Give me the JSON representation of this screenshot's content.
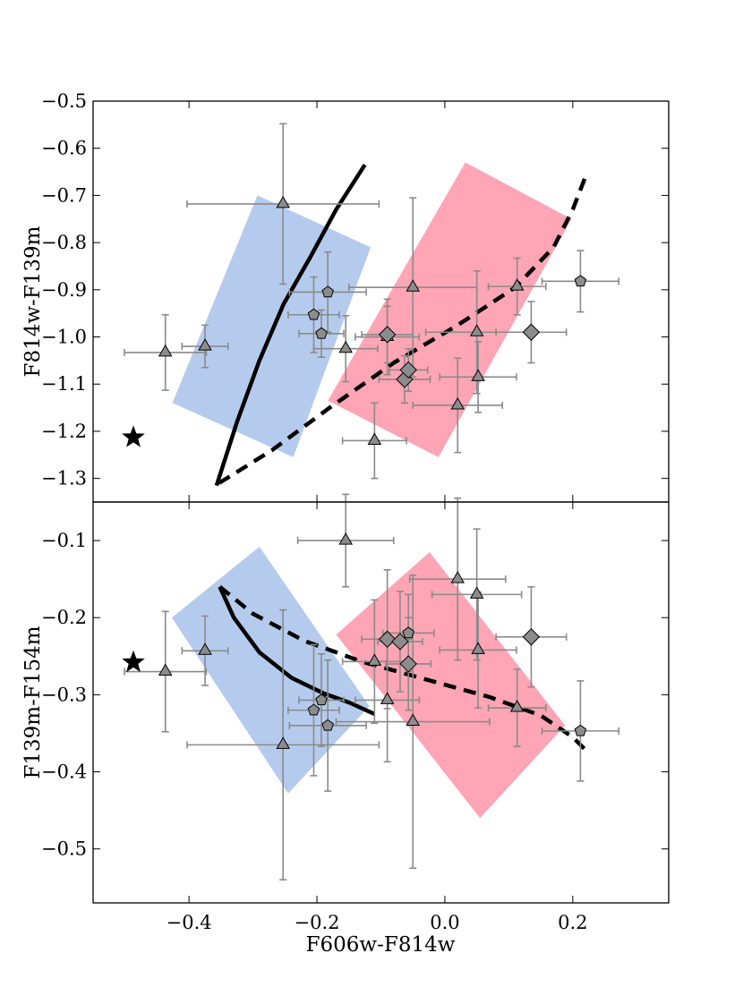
{
  "chart_data": [
    {
      "type": "scatter",
      "xlabel": "",
      "ylabel": "F814w-F139m",
      "xlim": [
        -0.55,
        0.35
      ],
      "ylim": [
        -1.35,
        -0.5
      ],
      "y_inverted": true,
      "xticks": [
        -0.4,
        -0.2,
        0.0,
        0.2
      ],
      "xtick_labels": [
        "",
        "",
        "",
        ""
      ],
      "yticks": [
        -0.5,
        -0.6,
        -0.7,
        -0.8,
        -0.9,
        -1.0,
        -1.1,
        -1.2,
        -1.3
      ],
      "ytick_labels": [
        "−0.5",
        "−0.6",
        "−0.7",
        "−0.8",
        "−0.9",
        "−1.0",
        "−1.1",
        "−1.2",
        "−1.3"
      ],
      "regions": [
        {
          "color": "#b5cbed",
          "polygon": [
            [
              -0.293,
              -0.7
            ],
            [
              -0.116,
              -0.81
            ],
            [
              -0.237,
              -1.255
            ],
            [
              -0.426,
              -1.14
            ]
          ]
        },
        {
          "color": "#ffa5b5",
          "polygon": [
            [
              0.032,
              -0.63
            ],
            [
              0.198,
              -0.75
            ],
            [
              -0.01,
              -1.255
            ],
            [
              -0.183,
              -1.135
            ]
          ]
        }
      ],
      "series": [
        {
          "marker": "triangle",
          "points": [
            {
              "x": -0.437,
              "y": -1.033,
              "xerr": 0.064,
              "yerr": 0.08
            },
            {
              "x": -0.375,
              "y": -1.02,
              "xerr": 0.036,
              "yerr": 0.045
            },
            {
              "x": -0.253,
              "y": -0.718,
              "xerr": 0.15,
              "yerr": 0.17
            },
            {
              "x": -0.155,
              "y": -1.025,
              "xerr": 0.05,
              "yerr": 0.07
            },
            {
              "x": -0.11,
              "y": -1.22,
              "xerr": 0.05,
              "yerr": 0.08
            },
            {
              "x": -0.09,
              "y": -1.0,
              "xerr": 0.05,
              "yerr": 0.08
            },
            {
              "x": -0.05,
              "y": -0.895,
              "xerr": 0.1,
              "yerr": 0.19
            },
            {
              "x": 0.02,
              "y": -1.145,
              "xerr": 0.07,
              "yerr": 0.1
            },
            {
              "x": 0.05,
              "y": -0.99,
              "xerr": 0.08,
              "yerr": 0.13
            },
            {
              "x": 0.052,
              "y": -1.085,
              "xerr": 0.06,
              "yerr": 0.075
            },
            {
              "x": 0.113,
              "y": -0.893,
              "xerr": 0.045,
              "yerr": 0.06
            }
          ]
        },
        {
          "marker": "pentagon",
          "points": [
            {
              "x": -0.205,
              "y": -0.953,
              "xerr": 0.04,
              "yerr": 0.08
            },
            {
              "x": -0.193,
              "y": -0.993,
              "xerr": 0.035,
              "yerr": 0.05
            },
            {
              "x": -0.183,
              "y": -0.905,
              "xerr": 0.06,
              "yerr": 0.085
            },
            {
              "x": 0.212,
              "y": -0.882,
              "xerr": 0.06,
              "yerr": 0.065
            }
          ]
        },
        {
          "marker": "diamond",
          "points": [
            {
              "x": -0.09,
              "y": -0.995,
              "xerr": 0.04,
              "yerr": 0.06
            },
            {
              "x": -0.063,
              "y": -1.09,
              "xerr": 0.04,
              "yerr": 0.05
            },
            {
              "x": -0.057,
              "y": -1.07,
              "xerr": 0.03,
              "yerr": 0.045
            },
            {
              "x": 0.135,
              "y": -0.99,
              "xerr": 0.055,
              "yerr": 0.065
            }
          ]
        },
        {
          "marker": "star",
          "points": [
            {
              "x": -0.487,
              "y": -1.213
            }
          ]
        }
      ],
      "curves": [
        {
          "style": "solid",
          "points": [
            [
              -0.357,
              -1.315
            ],
            [
              -0.325,
              -1.18
            ],
            [
              -0.29,
              -1.05
            ],
            [
              -0.252,
              -0.93
            ],
            [
              -0.21,
              -0.83
            ],
            [
              -0.17,
              -0.73
            ],
            [
              -0.125,
              -0.635
            ]
          ]
        },
        {
          "style": "dashed",
          "points": [
            [
              -0.353,
              -1.31
            ],
            [
              -0.27,
              -1.24
            ],
            [
              -0.18,
              -1.15
            ],
            [
              -0.08,
              -1.055
            ],
            [
              0.02,
              -0.975
            ],
            [
              0.11,
              -0.895
            ],
            [
              0.17,
              -0.81
            ],
            [
              0.2,
              -0.73
            ],
            [
              0.22,
              -0.66
            ]
          ]
        }
      ]
    },
    {
      "type": "scatter",
      "xlabel": "F606w-F814w",
      "ylabel": "F139m-F154m",
      "xlim": [
        -0.55,
        0.35
      ],
      "ylim": [
        -0.57,
        -0.05
      ],
      "y_inverted": true,
      "xticks": [
        -0.4,
        -0.2,
        0.0,
        0.2
      ],
      "xtick_labels": [
        "−0.4",
        "−0.2",
        "0.0",
        "0.2"
      ],
      "yticks": [
        -0.1,
        -0.2,
        -0.3,
        -0.4,
        -0.5
      ],
      "ytick_labels": [
        "−0.1",
        "−0.2",
        "−0.3",
        "−0.4",
        "−0.5"
      ],
      "regions": [
        {
          "color": "#b5cbed",
          "polygon": [
            [
              -0.29,
              -0.108
            ],
            [
              -0.118,
              -0.315
            ],
            [
              -0.245,
              -0.428
            ],
            [
              -0.427,
              -0.2
            ]
          ]
        },
        {
          "color": "#ffa5b5",
          "polygon": [
            [
              -0.024,
              -0.115
            ],
            [
              0.188,
              -0.34
            ],
            [
              0.055,
              -0.46
            ],
            [
              -0.17,
              -0.222
            ]
          ]
        }
      ],
      "series": [
        {
          "marker": "triangle",
          "points": [
            {
              "x": -0.437,
              "y": -0.27,
              "xerr": 0.064,
              "yerr": 0.078
            },
            {
              "x": -0.375,
              "y": -0.243,
              "xerr": 0.036,
              "yerr": 0.045
            },
            {
              "x": -0.253,
              "y": -0.365,
              "xerr": 0.15,
              "yerr": 0.175
            },
            {
              "x": -0.155,
              "y": -0.1,
              "xerr": 0.075,
              "yerr": 0.06
            },
            {
              "x": -0.11,
              "y": -0.257,
              "xerr": 0.05,
              "yerr": 0.08
            },
            {
              "x": -0.09,
              "y": -0.307,
              "xerr": 0.05,
              "yerr": 0.08
            },
            {
              "x": -0.05,
              "y": -0.335,
              "xerr": 0.12,
              "yerr": 0.19
            },
            {
              "x": 0.02,
              "y": -0.15,
              "xerr": 0.075,
              "yerr": 0.105
            },
            {
              "x": 0.05,
              "y": -0.17,
              "xerr": 0.07,
              "yerr": 0.085
            },
            {
              "x": 0.052,
              "y": -0.242,
              "xerr": 0.06,
              "yerr": 0.075
            },
            {
              "x": 0.113,
              "y": -0.317,
              "xerr": 0.045,
              "yerr": 0.05
            }
          ]
        },
        {
          "marker": "pentagon",
          "points": [
            {
              "x": -0.205,
              "y": -0.32,
              "xerr": 0.04,
              "yerr": 0.085
            },
            {
              "x": -0.193,
              "y": -0.307,
              "xerr": 0.035,
              "yerr": 0.06
            },
            {
              "x": -0.183,
              "y": -0.34,
              "xerr": 0.06,
              "yerr": 0.085
            },
            {
              "x": -0.057,
              "y": -0.22,
              "xerr": 0.04,
              "yerr": 0.05
            },
            {
              "x": 0.212,
              "y": -0.347,
              "xerr": 0.06,
              "yerr": 0.065
            }
          ]
        },
        {
          "marker": "diamond",
          "points": [
            {
              "x": -0.09,
              "y": -0.228,
              "xerr": 0.04,
              "yerr": 0.09
            },
            {
              "x": -0.07,
              "y": -0.231,
              "xerr": 0.035,
              "yerr": 0.065
            },
            {
              "x": -0.057,
              "y": -0.26,
              "xerr": 0.035,
              "yerr": 0.06
            },
            {
              "x": 0.135,
              "y": -0.225,
              "xerr": 0.055,
              "yerr": 0.065
            }
          ]
        },
        {
          "marker": "star",
          "points": [
            {
              "x": -0.487,
              "y": -0.258
            }
          ]
        }
      ],
      "curves": [
        {
          "style": "solid",
          "points": [
            [
              -0.352,
              -0.16
            ],
            [
              -0.33,
              -0.2
            ],
            [
              -0.29,
              -0.245
            ],
            [
              -0.24,
              -0.278
            ],
            [
              -0.19,
              -0.298
            ],
            [
              -0.15,
              -0.31
            ],
            [
              -0.11,
              -0.325
            ]
          ]
        },
        {
          "style": "dashed",
          "points": [
            [
              -0.352,
              -0.16
            ],
            [
              -0.3,
              -0.195
            ],
            [
              -0.22,
              -0.23
            ],
            [
              -0.13,
              -0.257
            ],
            [
              -0.03,
              -0.28
            ],
            [
              0.07,
              -0.303
            ],
            [
              0.15,
              -0.327
            ],
            [
              0.2,
              -0.355
            ],
            [
              0.218,
              -0.37
            ]
          ]
        }
      ]
    }
  ]
}
